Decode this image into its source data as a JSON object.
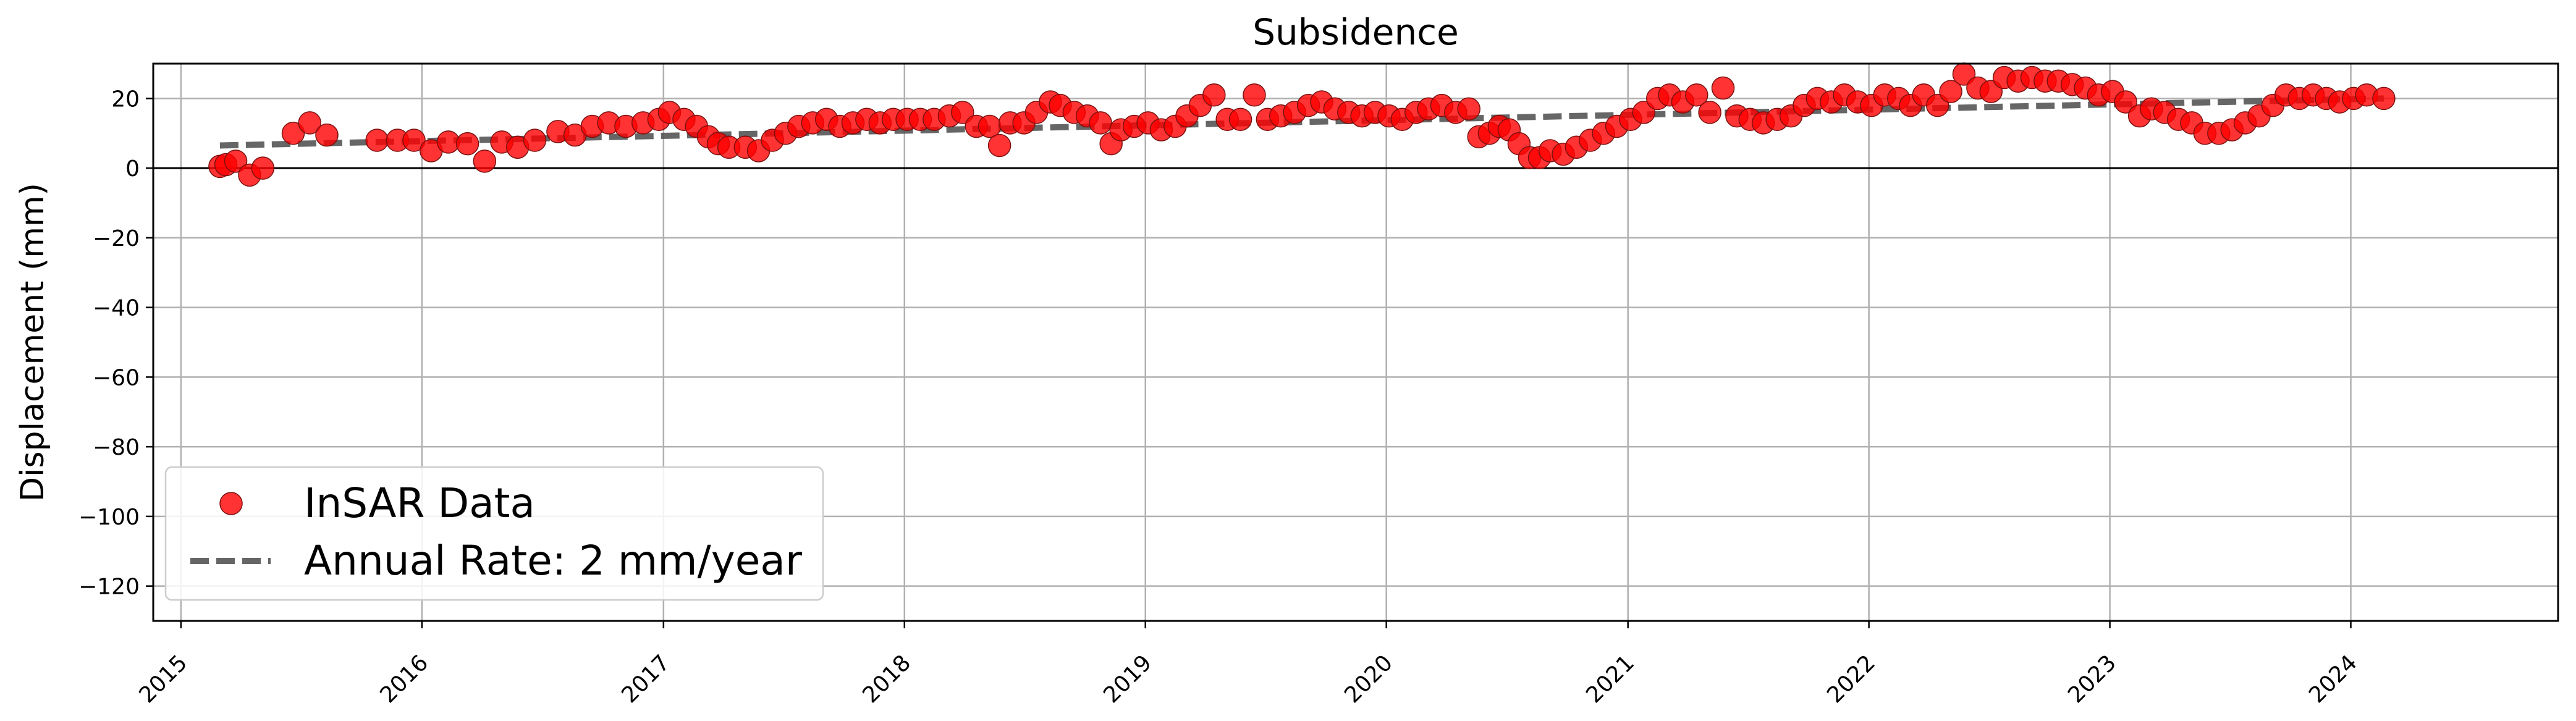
{
  "chart_data": {
    "type": "scatter",
    "title": "Subsidence",
    "xlabel": "",
    "ylabel": "Displacement (mm)",
    "x_axis": "date",
    "xlim": [
      "2014-11-20",
      "2024-11-10"
    ],
    "ylim": [
      -130,
      30
    ],
    "x_ticks": [
      "2015",
      "2016",
      "2017",
      "2018",
      "2019",
      "2020",
      "2021",
      "2022",
      "2023",
      "2024"
    ],
    "y_ticks": [
      20,
      0,
      -20,
      -40,
      -60,
      -80,
      -100,
      -120
    ],
    "grid": true,
    "zero_line": true,
    "legend_position": "lower-left",
    "colors": {
      "points": "#ff0000",
      "point_edge": "#7a1010",
      "trend": "#555555"
    },
    "series": [
      {
        "name": "InSAR Data",
        "kind": "scatter",
        "points": [
          [
            "2015-03-01",
            0.5
          ],
          [
            "2015-03-10",
            1
          ],
          [
            "2015-03-25",
            2
          ],
          [
            "2015-04-15",
            -2
          ],
          [
            "2015-05-05",
            0
          ],
          [
            "2015-06-20",
            10
          ],
          [
            "2015-07-15",
            13
          ],
          [
            "2015-08-10",
            9.5
          ],
          [
            "2015-10-25",
            8
          ],
          [
            "2015-11-25",
            8
          ],
          [
            "2015-12-20",
            8
          ],
          [
            "2016-01-15",
            5
          ],
          [
            "2016-02-10",
            7.5
          ],
          [
            "2016-03-10",
            7
          ],
          [
            "2016-04-05",
            2
          ],
          [
            "2016-05-01",
            7.5
          ],
          [
            "2016-05-25",
            6
          ],
          [
            "2016-06-20",
            8
          ],
          [
            "2016-07-25",
            10.5
          ],
          [
            "2016-08-20",
            9.5
          ],
          [
            "2016-09-15",
            12
          ],
          [
            "2016-10-10",
            13
          ],
          [
            "2016-11-05",
            12
          ],
          [
            "2016-12-01",
            13
          ],
          [
            "2016-12-25",
            14
          ],
          [
            "2017-01-10",
            16
          ],
          [
            "2017-02-01",
            14
          ],
          [
            "2017-02-20",
            12
          ],
          [
            "2017-03-10",
            9
          ],
          [
            "2017-03-25",
            7
          ],
          [
            "2017-04-10",
            6
          ],
          [
            "2017-05-05",
            6
          ],
          [
            "2017-05-25",
            5
          ],
          [
            "2017-06-15",
            8
          ],
          [
            "2017-07-05",
            10
          ],
          [
            "2017-07-25",
            12
          ],
          [
            "2017-08-15",
            13
          ],
          [
            "2017-09-05",
            14
          ],
          [
            "2017-09-25",
            12
          ],
          [
            "2017-10-15",
            13
          ],
          [
            "2017-11-05",
            14
          ],
          [
            "2017-11-25",
            13
          ],
          [
            "2017-12-15",
            14
          ],
          [
            "2018-01-05",
            14
          ],
          [
            "2018-01-25",
            14
          ],
          [
            "2018-02-15",
            14
          ],
          [
            "2018-03-10",
            15
          ],
          [
            "2018-03-30",
            16
          ],
          [
            "2018-04-20",
            12
          ],
          [
            "2018-05-10",
            12
          ],
          [
            "2018-05-25",
            6.5
          ],
          [
            "2018-06-10",
            13
          ],
          [
            "2018-07-01",
            13
          ],
          [
            "2018-07-20",
            16
          ],
          [
            "2018-08-10",
            19
          ],
          [
            "2018-08-25",
            18
          ],
          [
            "2018-09-15",
            16
          ],
          [
            "2018-10-05",
            15
          ],
          [
            "2018-10-25",
            13
          ],
          [
            "2018-11-10",
            7
          ],
          [
            "2018-11-25",
            11
          ],
          [
            "2018-12-15",
            12
          ],
          [
            "2019-01-05",
            13
          ],
          [
            "2019-01-25",
            11
          ],
          [
            "2019-02-15",
            12
          ],
          [
            "2019-03-05",
            15
          ],
          [
            "2019-03-25",
            18
          ],
          [
            "2019-04-15",
            21
          ],
          [
            "2019-05-05",
            14
          ],
          [
            "2019-05-25",
            14
          ],
          [
            "2019-06-15",
            21
          ],
          [
            "2019-07-05",
            14
          ],
          [
            "2019-07-25",
            15
          ],
          [
            "2019-08-15",
            16
          ],
          [
            "2019-09-05",
            18
          ],
          [
            "2019-09-25",
            19
          ],
          [
            "2019-10-15",
            17
          ],
          [
            "2019-11-05",
            16
          ],
          [
            "2019-11-25",
            15
          ],
          [
            "2019-12-15",
            16
          ],
          [
            "2020-01-05",
            15
          ],
          [
            "2020-01-25",
            14
          ],
          [
            "2020-02-15",
            16
          ],
          [
            "2020-03-05",
            17
          ],
          [
            "2020-03-25",
            18
          ],
          [
            "2020-04-15",
            16
          ],
          [
            "2020-05-05",
            17
          ],
          [
            "2020-05-20",
            9
          ],
          [
            "2020-06-05",
            10
          ],
          [
            "2020-06-20",
            12
          ],
          [
            "2020-07-05",
            11
          ],
          [
            "2020-07-20",
            7
          ],
          [
            "2020-08-05",
            3
          ],
          [
            "2020-08-20",
            3
          ],
          [
            "2020-09-05",
            5
          ],
          [
            "2020-09-25",
            4
          ],
          [
            "2020-10-15",
            6
          ],
          [
            "2020-11-05",
            8
          ],
          [
            "2020-11-25",
            10
          ],
          [
            "2020-12-15",
            12
          ],
          [
            "2021-01-05",
            14
          ],
          [
            "2021-01-25",
            16
          ],
          [
            "2021-02-15",
            20
          ],
          [
            "2021-03-05",
            21
          ],
          [
            "2021-03-25",
            19
          ],
          [
            "2021-04-15",
            21
          ],
          [
            "2021-05-05",
            16
          ],
          [
            "2021-05-25",
            23
          ],
          [
            "2021-06-15",
            15
          ],
          [
            "2021-07-05",
            14
          ],
          [
            "2021-07-25",
            13
          ],
          [
            "2021-08-15",
            14
          ],
          [
            "2021-09-05",
            15
          ],
          [
            "2021-09-25",
            18
          ],
          [
            "2021-10-15",
            20
          ],
          [
            "2021-11-05",
            19
          ],
          [
            "2021-11-25",
            21
          ],
          [
            "2021-12-15",
            19
          ],
          [
            "2022-01-05",
            18
          ],
          [
            "2022-01-25",
            21
          ],
          [
            "2022-02-15",
            20
          ],
          [
            "2022-03-05",
            18
          ],
          [
            "2022-03-25",
            21
          ],
          [
            "2022-04-15",
            18
          ],
          [
            "2022-05-05",
            22
          ],
          [
            "2022-05-25",
            27
          ],
          [
            "2022-06-15",
            23
          ],
          [
            "2022-07-05",
            22
          ],
          [
            "2022-07-25",
            26
          ],
          [
            "2022-08-15",
            25
          ],
          [
            "2022-09-05",
            26
          ],
          [
            "2022-09-25",
            25
          ],
          [
            "2022-10-15",
            25
          ],
          [
            "2022-11-05",
            24
          ],
          [
            "2022-11-25",
            23
          ],
          [
            "2022-12-15",
            21
          ],
          [
            "2023-01-05",
            22
          ],
          [
            "2023-01-25",
            19
          ],
          [
            "2023-02-15",
            15
          ],
          [
            "2023-03-05",
            17
          ],
          [
            "2023-03-25",
            16
          ],
          [
            "2023-04-15",
            14
          ],
          [
            "2023-05-05",
            13
          ],
          [
            "2023-05-25",
            10
          ],
          [
            "2023-06-15",
            10
          ],
          [
            "2023-07-05",
            11
          ],
          [
            "2023-07-25",
            13
          ],
          [
            "2023-08-15",
            15
          ],
          [
            "2023-09-05",
            18
          ],
          [
            "2023-09-25",
            21
          ],
          [
            "2023-10-15",
            20
          ],
          [
            "2023-11-05",
            21
          ],
          [
            "2023-11-25",
            20
          ],
          [
            "2023-12-15",
            19
          ],
          [
            "2024-01-05",
            20
          ],
          [
            "2024-01-25",
            21
          ],
          [
            "2024-02-20",
            20
          ]
        ]
      },
      {
        "name": "Annual Rate: 2 mm/year",
        "kind": "dashed-line",
        "points": [
          [
            "2015-03-01",
            6.5
          ],
          [
            "2024-02-20",
            20
          ]
        ]
      }
    ]
  }
}
